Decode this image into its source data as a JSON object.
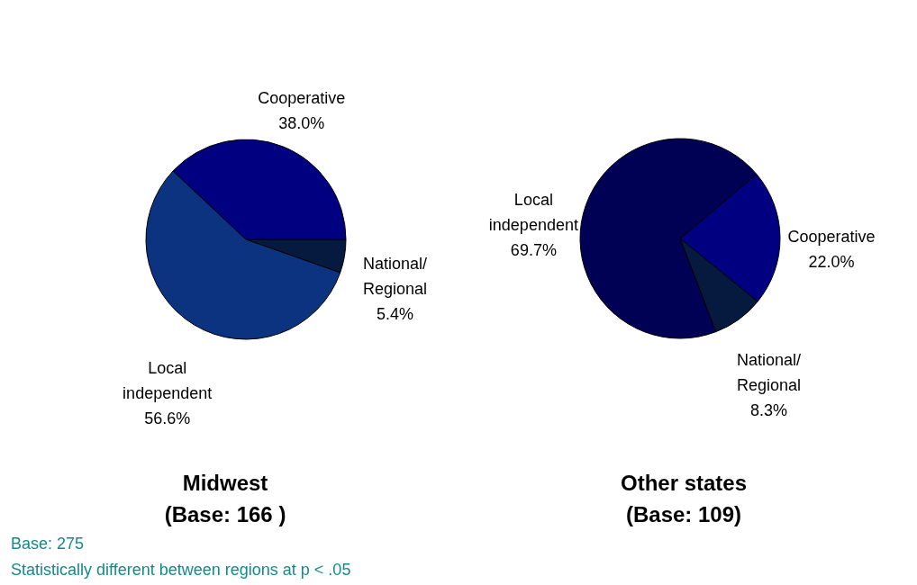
{
  "chart_data": [
    {
      "type": "pie",
      "title": "Midwest",
      "subtitle": "(Base:  166 )",
      "categories": [
        "National/Regional",
        "Local independent",
        "Cooperative"
      ],
      "values": [
        5.4,
        56.6,
        38.0
      ],
      "value_labels": [
        "5.4%",
        "56.6%",
        "38.0%"
      ],
      "colors": [
        "#061a40",
        "#0c3380",
        "#000080"
      ],
      "annotations": [
        "Base:  275",
        "Statistically different between regions at p < .05"
      ]
    },
    {
      "type": "pie",
      "title": "Other states",
      "subtitle": "(Base: 109)",
      "categories": [
        "Cooperative",
        "National/Regional",
        "Local independent"
      ],
      "values": [
        22.0,
        8.3,
        69.7
      ],
      "value_labels": [
        "22.0%",
        "8.3%",
        "69.7%"
      ],
      "colors": [
        "#000080",
        "#061a40",
        "#000055"
      ]
    }
  ]
}
